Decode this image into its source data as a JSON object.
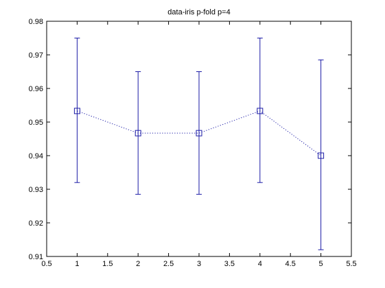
{
  "chart_data": {
    "type": "line",
    "title": "data-iris  p-fold p=4",
    "xlabel": "",
    "ylabel": "",
    "xlim": [
      0.5,
      5.5
    ],
    "ylim": [
      0.91,
      0.98
    ],
    "xticks": [
      0.5,
      1,
      1.5,
      2,
      2.5,
      3,
      3.5,
      4,
      4.5,
      5,
      5.5
    ],
    "xtick_labels": [
      "0.5",
      "1",
      "1.5",
      "2",
      "2.5",
      "3",
      "3.5",
      "4",
      "4.5",
      "5",
      "5.5"
    ],
    "yticks": [
      0.91,
      0.92,
      0.93,
      0.94,
      0.95,
      0.96,
      0.97,
      0.98
    ],
    "ytick_labels": [
      "0.91",
      "0.92",
      "0.93",
      "0.94",
      "0.95",
      "0.96",
      "0.97",
      "0.98"
    ],
    "grid": false,
    "series": [
      {
        "x": [
          1,
          2,
          3,
          4,
          5
        ],
        "y": [
          0.9533,
          0.9467,
          0.9467,
          0.9533,
          0.94
        ],
        "lower": [
          0.932,
          0.9285,
          0.9285,
          0.932,
          0.912
        ],
        "upper": [
          0.975,
          0.965,
          0.965,
          0.975,
          0.9685
        ],
        "marker": "square",
        "line_style": "dotted",
        "color": "#1a1aa6"
      }
    ]
  }
}
